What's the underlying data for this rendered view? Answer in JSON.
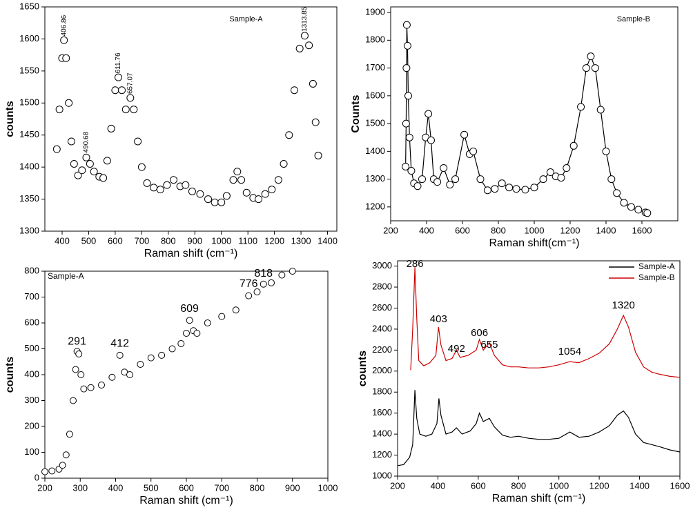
{
  "chart_data": [
    {
      "type": "line",
      "markers": true,
      "connect": false,
      "legend": "top",
      "x_label": "Raman shift (cm⁻¹)",
      "y_label": "counts",
      "xlim": [
        335,
        1435
      ],
      "ylim": [
        1300,
        1650
      ],
      "xticks": [
        400,
        500,
        600,
        700,
        800,
        900,
        1000,
        1100,
        1200,
        1300,
        1400
      ],
      "yticks": [
        1300,
        1350,
        1400,
        1450,
        1500,
        1550,
        1600,
        1650
      ],
      "series": [
        {
          "name": "Sample-A",
          "color": "#000000",
          "x": [
            380,
            390,
            400,
            407,
            415,
            425,
            435,
            445,
            460,
            475,
            491,
            505,
            520,
            540,
            555,
            570,
            585,
            600,
            612,
            625,
            640,
            657,
            670,
            685,
            700,
            720,
            745,
            770,
            795,
            820,
            845,
            865,
            890,
            920,
            950,
            975,
            1000,
            1020,
            1045,
            1060,
            1075,
            1095,
            1120,
            1140,
            1165,
            1190,
            1215,
            1235,
            1255,
            1275,
            1295,
            1314,
            1330,
            1345,
            1355,
            1365
          ],
          "values": [
            1428,
            1490,
            1570,
            1598,
            1570,
            1500,
            1440,
            1405,
            1387,
            1395,
            1415,
            1405,
            1393,
            1385,
            1383,
            1410,
            1460,
            1520,
            1540,
            1520,
            1490,
            1508,
            1490,
            1440,
            1400,
            1375,
            1368,
            1365,
            1372,
            1380,
            1370,
            1372,
            1362,
            1358,
            1350,
            1345,
            1345,
            1355,
            1380,
            1393,
            1380,
            1360,
            1352,
            1350,
            1358,
            1365,
            1380,
            1405,
            1450,
            1520,
            1585,
            1605,
            1590,
            1530,
            1470,
            1418
          ]
        }
      ],
      "annotations": [
        {
          "text": "406.86",
          "x": 406.86,
          "y": 1600
        },
        {
          "text": "490.68",
          "x": 490.68,
          "y": 1418
        },
        {
          "text": "611.76",
          "x": 611.76,
          "y": 1542
        },
        {
          "text": "657.07",
          "x": 657.07,
          "y": 1510
        },
        {
          "text": "1313.85",
          "x": 1313.85,
          "y": 1607
        }
      ]
    },
    {
      "type": "line",
      "markers": true,
      "connect": true,
      "legend": "top-right",
      "x_label": "Raman shift(cm⁻¹)",
      "y_label": "Counts",
      "xlim": [
        200,
        1800
      ],
      "ylim": [
        1150,
        1920
      ],
      "xticks": [
        200,
        400,
        600,
        800,
        1000,
        1200,
        1400,
        1600
      ],
      "yticks": [
        1200,
        1300,
        1400,
        1500,
        1600,
        1700,
        1800,
        1900
      ],
      "series": [
        {
          "name": "Sample-B",
          "color": "#000000",
          "x": [
            283,
            286,
            288,
            290,
            294,
            298,
            305,
            315,
            330,
            350,
            375,
            395,
            410,
            425,
            440,
            460,
            495,
            530,
            560,
            610,
            640,
            660,
            700,
            740,
            780,
            820,
            860,
            900,
            950,
            1000,
            1050,
            1090,
            1120,
            1150,
            1180,
            1220,
            1260,
            1290,
            1315,
            1340,
            1370,
            1400,
            1430,
            1460,
            1500,
            1540,
            1580,
            1620,
            1630
          ],
          "values": [
            1345,
            1500,
            1700,
            1855,
            1780,
            1600,
            1450,
            1330,
            1285,
            1275,
            1300,
            1450,
            1535,
            1440,
            1300,
            1290,
            1340,
            1280,
            1300,
            1460,
            1390,
            1400,
            1300,
            1260,
            1265,
            1285,
            1270,
            1265,
            1262,
            1270,
            1300,
            1325,
            1310,
            1305,
            1340,
            1420,
            1560,
            1700,
            1742,
            1700,
            1550,
            1400,
            1300,
            1250,
            1215,
            1200,
            1190,
            1180,
            1178
          ]
        }
      ],
      "annotations": []
    },
    {
      "type": "line",
      "markers": true,
      "connect": false,
      "legend": "top-left",
      "x_label": "Raman shift (cm⁻¹)",
      "y_label": "counts",
      "xlim": [
        200,
        1000
      ],
      "ylim": [
        0,
        800
      ],
      "xticks": [
        200,
        300,
        400,
        500,
        600,
        700,
        800,
        900,
        1000
      ],
      "yticks": [
        0,
        100,
        200,
        300,
        400,
        500,
        600,
        700,
        800
      ],
      "series": [
        {
          "name": "Sample-A",
          "color": "#000000",
          "x": [
            200,
            220,
            240,
            250,
            260,
            270,
            280,
            287,
            291,
            296,
            302,
            310,
            330,
            360,
            390,
            412,
            425,
            440,
            470,
            500,
            530,
            560,
            585,
            600,
            609,
            620,
            630,
            660,
            700,
            740,
            776,
            800,
            818,
            840,
            870,
            900
          ],
          "values": [
            25,
            28,
            35,
            50,
            90,
            170,
            300,
            420,
            490,
            480,
            400,
            345,
            350,
            360,
            390,
            475,
            410,
            400,
            440,
            465,
            475,
            500,
            520,
            560,
            610,
            570,
            560,
            600,
            625,
            650,
            705,
            720,
            750,
            755,
            785,
            800
          ]
        }
      ],
      "annotations": [
        {
          "text": "291",
          "x": 291,
          "y": 501
        },
        {
          "text": "412",
          "x": 412,
          "y": 493
        },
        {
          "text": "609",
          "x": 609,
          "y": 627
        },
        {
          "text": "776",
          "x": 776,
          "y": 723
        },
        {
          "text": "818",
          "x": 818,
          "y": 763
        }
      ]
    },
    {
      "type": "line",
      "markers": false,
      "connect": true,
      "legend": "top-right-box",
      "x_label": "Raman shift (cm⁻¹)",
      "y_label": "counts",
      "xlim": [
        200,
        1600
      ],
      "ylim": [
        1000,
        3050
      ],
      "xticks": [
        200,
        400,
        600,
        800,
        1000,
        1200,
        1400,
        1600
      ],
      "yticks": [
        1000,
        1200,
        1400,
        1600,
        1800,
        2000,
        2200,
        2400,
        2600,
        2800,
        3000
      ],
      "series": [
        {
          "name": "Sample-A",
          "color": "#000000",
          "x": [
            200,
            230,
            260,
            275,
            286,
            295,
            310,
            340,
            370,
            395,
            405,
            415,
            440,
            470,
            492,
            520,
            560,
            590,
            606,
            625,
            655,
            680,
            720,
            760,
            800,
            850,
            900,
            950,
            1000,
            1054,
            1100,
            1150,
            1200,
            1250,
            1290,
            1320,
            1345,
            1380,
            1420,
            1460,
            1500,
            1550,
            1600
          ],
          "values": [
            1100,
            1110,
            1180,
            1300,
            1820,
            1550,
            1400,
            1380,
            1400,
            1500,
            1740,
            1580,
            1400,
            1420,
            1460,
            1400,
            1430,
            1500,
            1600,
            1520,
            1550,
            1470,
            1390,
            1370,
            1380,
            1360,
            1350,
            1350,
            1360,
            1420,
            1370,
            1380,
            1420,
            1480,
            1580,
            1620,
            1560,
            1400,
            1320,
            1300,
            1280,
            1250,
            1230
          ]
        },
        {
          "name": "Sample-B",
          "color": "#cc0000",
          "x": [
            265,
            275,
            286,
            295,
            305,
            330,
            360,
            390,
            403,
            415,
            440,
            470,
            492,
            510,
            550,
            590,
            606,
            625,
            655,
            680,
            720,
            760,
            800,
            850,
            900,
            950,
            1000,
            1054,
            1100,
            1150,
            1200,
            1250,
            1290,
            1320,
            1345,
            1380,
            1420,
            1460,
            1500,
            1550,
            1600
          ],
          "values": [
            2010,
            2400,
            2990,
            2500,
            2100,
            2050,
            2080,
            2150,
            2420,
            2250,
            2100,
            2120,
            2200,
            2130,
            2150,
            2200,
            2300,
            2200,
            2270,
            2150,
            2060,
            2040,
            2040,
            2030,
            2030,
            2040,
            2060,
            2090,
            2080,
            2120,
            2170,
            2260,
            2400,
            2530,
            2420,
            2180,
            2040,
            1990,
            1970,
            1950,
            1940
          ]
        }
      ],
      "annotations": [
        {
          "text": "286",
          "x": 286,
          "y": 2950
        },
        {
          "text": "403",
          "x": 403,
          "y": 2426
        },
        {
          "text": "492",
          "x": 492,
          "y": 2143
        },
        {
          "text": "606",
          "x": 606,
          "y": 2294
        },
        {
          "text": "655",
          "x": 655,
          "y": 2183
        },
        {
          "text": "1054",
          "x": 1054,
          "y": 2117
        },
        {
          "text": "1320",
          "x": 1320,
          "y": 2557
        }
      ]
    }
  ]
}
